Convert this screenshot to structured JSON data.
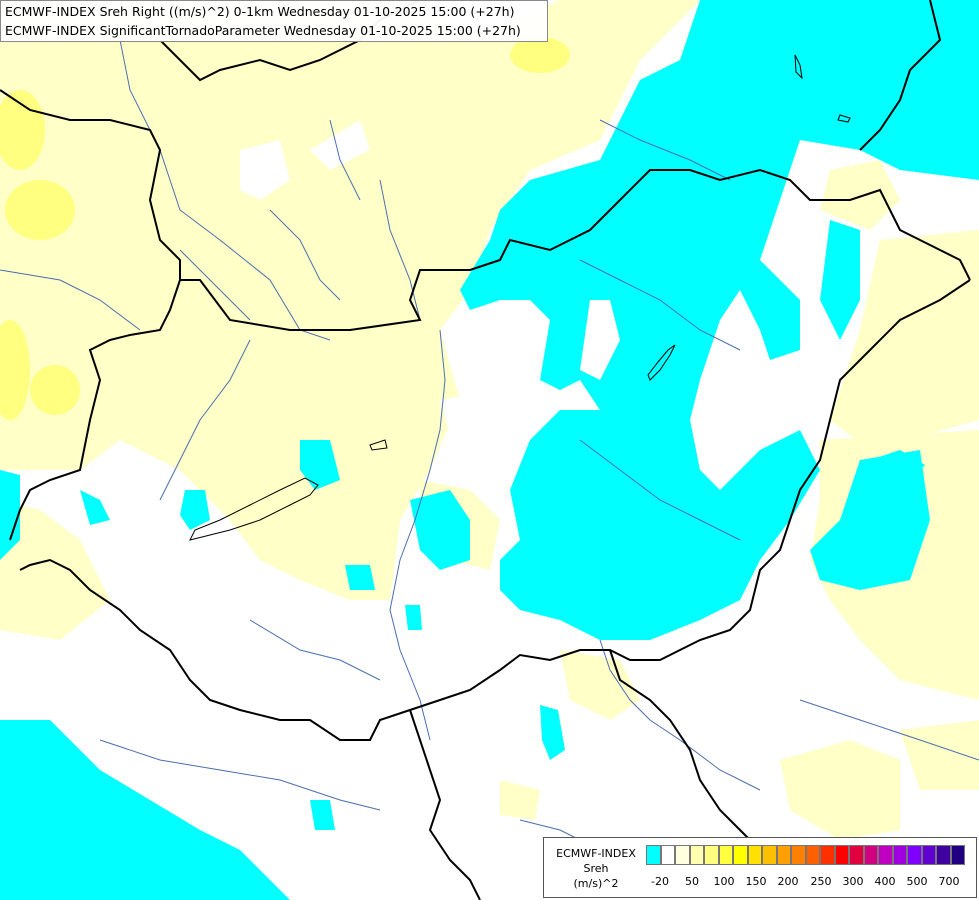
{
  "titles": {
    "line1": "ECMWF-INDEX Sreh Right ((m/s)^2) 0-1km Wednesday 01-10-2025 15:00 (+27h)",
    "line2": "ECMWF-INDEX SignificantTornadoParameter Wednesday 01-10-2025 15:00 (+27h)"
  },
  "legend": {
    "source": "ECMWF-INDEX",
    "param": "Sreh",
    "unit": "(m/s)^2",
    "tick_labels": [
      "-20",
      "50",
      "100",
      "150",
      "200",
      "250",
      "300",
      "400",
      "500",
      "700"
    ],
    "colors": [
      "#00ffff",
      "#ffffff",
      "#ffffe0",
      "#ffffb0",
      "#ffff80",
      "#ffff40",
      "#ffff00",
      "#ffe000",
      "#ffc000",
      "#ffa000",
      "#ff8000",
      "#ff6000",
      "#ff3000",
      "#ff0000",
      "#e00040",
      "#d00080",
      "#c000c0",
      "#a000e0",
      "#8000ff",
      "#6000d0",
      "#4000a0",
      "#200080"
    ]
  },
  "colors": {
    "cyan": "#00ffff",
    "pale_yellow": "#ffffc8",
    "yellow": "#ffff80",
    "white": "#ffffff",
    "border": "#000000",
    "river": "#4a6fb0"
  }
}
